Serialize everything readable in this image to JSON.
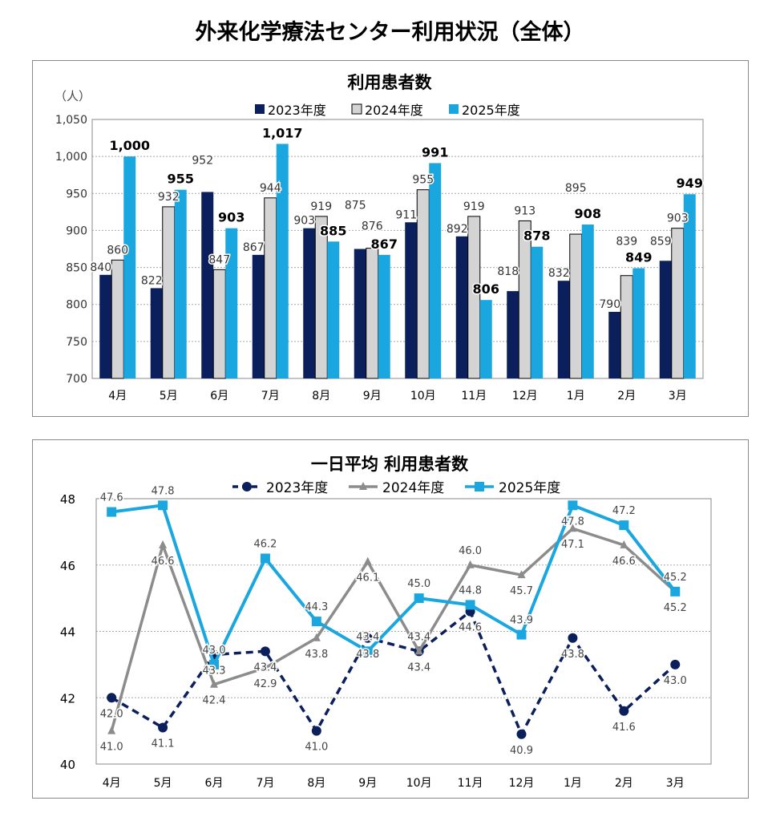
{
  "page_title": "外来化学療法センター利用状況（全体）",
  "chart_data": [
    {
      "type": "bar",
      "title": "利用患者数",
      "ylabel": "（人）",
      "ylim": [
        700,
        1050
      ],
      "yticks": [
        700,
        750,
        800,
        850,
        900,
        950,
        1000,
        1050
      ],
      "ytick_labels": [
        "700",
        "750",
        "800",
        "850",
        "900",
        "950",
        "1,000",
        "1,050"
      ],
      "categories": [
        "4月",
        "5月",
        "6月",
        "7月",
        "8月",
        "9月",
        "10月",
        "11月",
        "12月",
        "1月",
        "2月",
        "3月"
      ],
      "legend_position": "top",
      "grid": true,
      "series": [
        {
          "name": "2023年度",
          "color": "#0b1f5c",
          "values": [
            840,
            822,
            952,
            867,
            903,
            875,
            911,
            892,
            818,
            832,
            790,
            859
          ]
        },
        {
          "name": "2024年度",
          "color": "#d4d4d4",
          "values": [
            860,
            932,
            847,
            944,
            919,
            876,
            955,
            919,
            913,
            895,
            839,
            903
          ]
        },
        {
          "name": "2025年度",
          "color": "#1aa7e0",
          "values": [
            1000,
            955,
            903,
            1017,
            885,
            867,
            991,
            806,
            878,
            908,
            849,
            949
          ],
          "labels": [
            "1,000",
            "955",
            "903",
            "1,017",
            "885",
            "867",
            "991",
            "806",
            "878",
            "908",
            "849",
            "949"
          ]
        }
      ]
    },
    {
      "type": "line",
      "title": "一日平均 利用患者数",
      "ylim": [
        40,
        48
      ],
      "yticks": [
        40,
        42,
        44,
        46,
        48
      ],
      "categories": [
        "4月",
        "5月",
        "6月",
        "7月",
        "8月",
        "9月",
        "10月",
        "11月",
        "12月",
        "1月",
        "2月",
        "3月"
      ],
      "legend_position": "top",
      "grid": true,
      "series": [
        {
          "name": "2023年度",
          "color": "#0b1f5c",
          "style": "dashed",
          "marker": "circle",
          "values": [
            42.0,
            41.1,
            43.3,
            43.4,
            41.0,
            43.8,
            43.4,
            44.6,
            40.9,
            43.8,
            41.6,
            43.0
          ]
        },
        {
          "name": "2024年度",
          "color": "#8c8c8c",
          "style": "solid",
          "marker": "triangle",
          "values": [
            41.0,
            46.6,
            42.4,
            42.9,
            43.8,
            46.1,
            43.4,
            46.0,
            45.7,
            47.1,
            46.6,
            45.2
          ]
        },
        {
          "name": "2025年度",
          "color": "#1aa7e0",
          "style": "solid",
          "marker": "square",
          "values": [
            47.6,
            47.8,
            43.0,
            46.2,
            44.3,
            43.4,
            45.0,
            44.8,
            43.9,
            47.8,
            47.2,
            45.2
          ]
        }
      ]
    }
  ]
}
